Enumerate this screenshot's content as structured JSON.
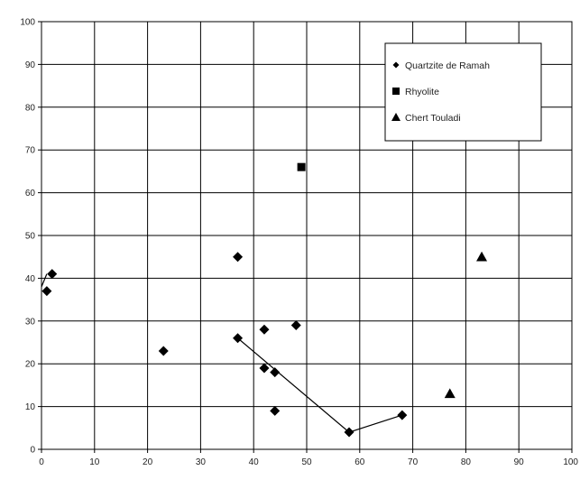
{
  "chart_data": {
    "type": "scatter",
    "title": "",
    "xlabel": "",
    "ylabel": "",
    "xlim": [
      0,
      100
    ],
    "ylim": [
      0,
      100
    ],
    "x_ticks": [
      "0",
      "10",
      "20",
      "30",
      "40",
      "50",
      "60",
      "70",
      "80",
      "90",
      "100"
    ],
    "y_ticks": [
      "0",
      "10",
      "20",
      "30",
      "40",
      "50",
      "60",
      "70",
      "80",
      "90",
      "100"
    ],
    "grid": true,
    "legend_position": "top-right",
    "series": [
      {
        "name": "Quartzite de Ramah",
        "marker": "diamond",
        "color": "#000000",
        "points": [
          {
            "x": 1,
            "y": 37
          },
          {
            "x": 2,
            "y": 41
          },
          {
            "x": 23,
            "y": 23
          },
          {
            "x": 37,
            "y": 45
          },
          {
            "x": 37,
            "y": 26
          },
          {
            "x": 42,
            "y": 28
          },
          {
            "x": 42,
            "y": 19
          },
          {
            "x": 44,
            "y": 18
          },
          {
            "x": 44,
            "y": 9
          },
          {
            "x": 48,
            "y": 29
          },
          {
            "x": 58,
            "y": 4
          },
          {
            "x": 68,
            "y": 8
          }
        ]
      },
      {
        "name": "Rhyolite",
        "marker": "square",
        "color": "#000000",
        "points": [
          {
            "x": 49,
            "y": 66
          }
        ]
      },
      {
        "name": "Chert Touladi",
        "marker": "triangle",
        "color": "#000000",
        "points": [
          {
            "x": 77,
            "y": 13
          },
          {
            "x": 83,
            "y": 45
          }
        ]
      }
    ],
    "lines": [
      {
        "points": [
          {
            "x": 0,
            "y": 38
          },
          {
            "x": 1,
            "y": 41
          }
        ]
      },
      {
        "points": [
          {
            "x": 37,
            "y": 26
          },
          {
            "x": 58,
            "y": 4
          },
          {
            "x": 68,
            "y": 8
          }
        ]
      }
    ]
  }
}
